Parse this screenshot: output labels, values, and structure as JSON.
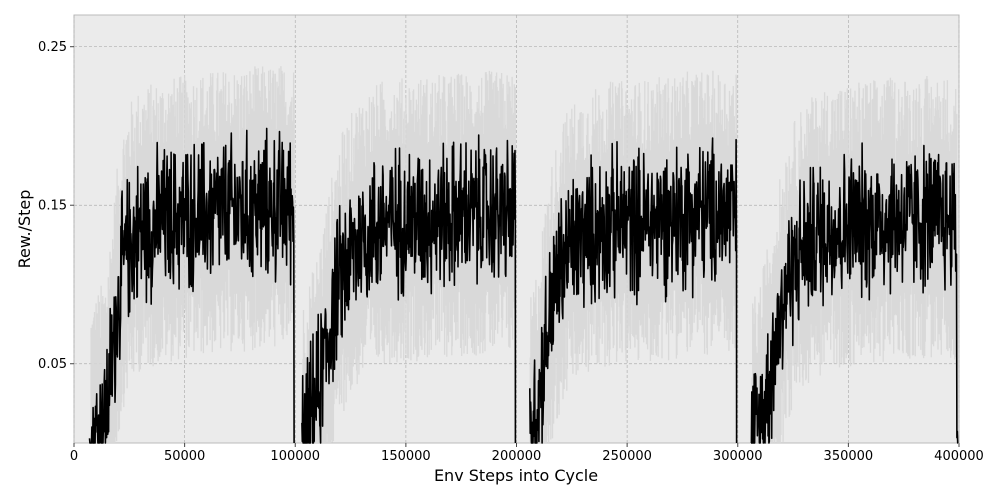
{
  "chart_data": {
    "type": "line",
    "title": "",
    "xlabel": "Env Steps into Cycle",
    "ylabel": "Rew./Step",
    "xlim": [
      0,
      400000
    ],
    "ylim": [
      0,
      0.27
    ],
    "xticks": [
      0,
      50000,
      100000,
      150000,
      200000,
      250000,
      300000,
      350000,
      400000
    ],
    "xtick_labels": [
      "0",
      "50000",
      "100000",
      "150000",
      "200000",
      "250000",
      "300000",
      "350000",
      "400000"
    ],
    "yticks": [
      0.05,
      0.15,
      0.25
    ],
    "ytick_labels": [
      "0.05",
      "0.15",
      "0.25"
    ],
    "grid": true,
    "legend": "none",
    "colors": {
      "background": "#ebebeb",
      "band": "#d6d6d6",
      "line": "#000000",
      "grid": "#b0b0b0"
    },
    "series": [
      {
        "role": "mean",
        "x": [
          7000,
          10000,
          14000,
          17000,
          20000,
          22000,
          25000,
          30000,
          40000,
          60000,
          80000,
          99000,
          100000,
          103000,
          106000,
          110000,
          114000,
          118000,
          122000,
          126000,
          130000,
          140000,
          160000,
          180000,
          199000,
          200000,
          206000,
          209000,
          212000,
          215000,
          218000,
          221000,
          225000,
          230000,
          240000,
          260000,
          280000,
          299000,
          300000,
          306000,
          310000,
          314000,
          318000,
          322000,
          326000,
          330000,
          340000,
          360000,
          380000,
          399000
        ],
        "y": [
          0,
          0.005,
          0.015,
          0.05,
          0.09,
          0.11,
          0.125,
          0.135,
          0.14,
          0.145,
          0.148,
          0.15,
          0,
          0,
          0.01,
          0.03,
          0.06,
          0.09,
          0.11,
          0.12,
          0.13,
          0.14,
          0.142,
          0.145,
          0.145,
          0,
          0,
          0.02,
          0.05,
          0.08,
          0.1,
          0.115,
          0.125,
          0.13,
          0.138,
          0.14,
          0.145,
          0.145,
          0,
          0,
          0.01,
          0.04,
          0.07,
          0.1,
          0.115,
          0.125,
          0.135,
          0.14,
          0.142,
          0.142
        ],
        "noise": 0.035
      },
      {
        "role": "std-band",
        "spread": 0.06
      }
    ]
  }
}
